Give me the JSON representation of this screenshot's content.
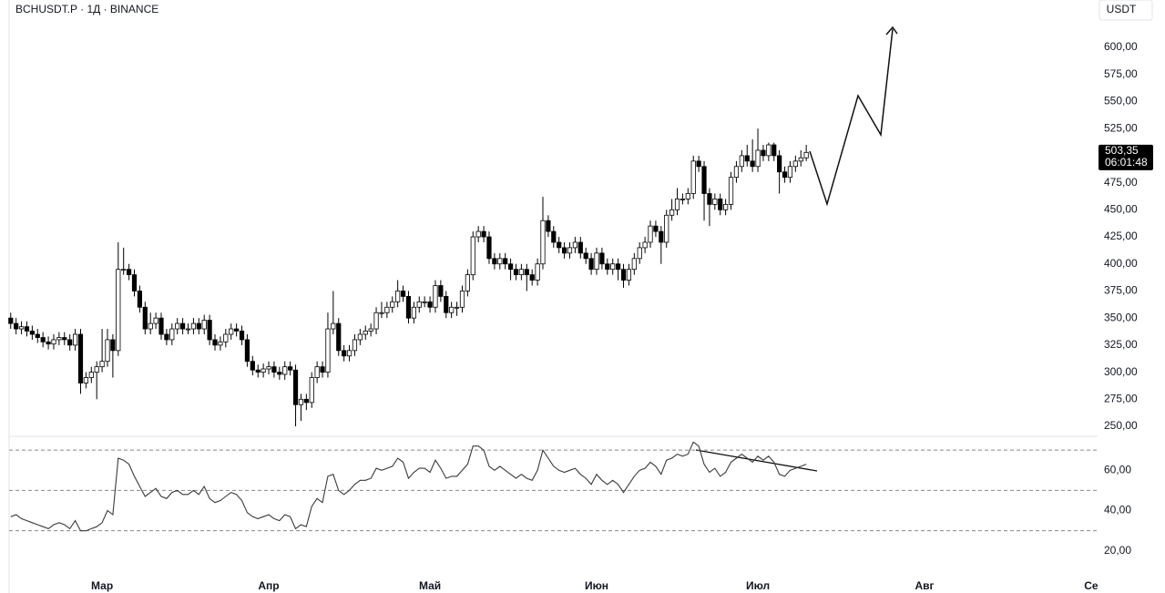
{
  "chart_data": [
    {
      "type": "candlestick",
      "title": "BCHUSDT.P · 1Д · BINANCE",
      "currency": "USDT",
      "up_color": "#ffffff",
      "down_color": "#000000",
      "edge_color": "#000000",
      "xlim": [
        -0.3,
        202.2
      ],
      "ylim": [
        241.6,
        643.8
      ],
      "yticks": [
        {
          "value": 250,
          "label": "250,00"
        },
        {
          "value": 275,
          "label": "275,00"
        },
        {
          "value": 300,
          "label": "300,00"
        },
        {
          "value": 325,
          "label": "325,00"
        },
        {
          "value": 350,
          "label": "350,00"
        },
        {
          "value": 375,
          "label": "375,00"
        },
        {
          "value": 400,
          "label": "400,00"
        },
        {
          "value": 425,
          "label": "425,00"
        },
        {
          "value": 450,
          "label": "450,00"
        },
        {
          "value": 475,
          "label": "475,00"
        },
        {
          "value": 500,
          "label": "500,00"
        },
        {
          "value": 525,
          "label": "525,00"
        },
        {
          "value": 550,
          "label": "550,00"
        },
        {
          "value": 575,
          "label": "575,00"
        },
        {
          "value": 600,
          "label": "600,00"
        }
      ],
      "last_price": {
        "value": 503.35,
        "label": "503,35"
      },
      "countdown": "06:01:48",
      "open": [
        350,
        345,
        340,
        342,
        338,
        335,
        332,
        328,
        326,
        330,
        332,
        330,
        325,
        335,
        290,
        295,
        300,
        305,
        310,
        330,
        320,
        395,
        395,
        390,
        375,
        360,
        340,
        345,
        350,
        335,
        330,
        340,
        345,
        340,
        340,
        345,
        340,
        348,
        330,
        325,
        328,
        335,
        340,
        338,
        330,
        310,
        302,
        300,
        303,
        305,
        300,
        298,
        305,
        302,
        270,
        275,
        272,
        295,
        305,
        300,
        340,
        345,
        320,
        315,
        320,
        330,
        335,
        338,
        340,
        355,
        355,
        360,
        365,
        375,
        370,
        350,
        360,
        365,
        365,
        360,
        380,
        370,
        355,
        360,
        360,
        375,
        390,
        425,
        430,
        425,
        405,
        400,
        405,
        400,
        395,
        390,
        395,
        390,
        385,
        400,
        440,
        430,
        420,
        415,
        410,
        415,
        420,
        410,
        405,
        395,
        410,
        400,
        395,
        400,
        395,
        385,
        395,
        405,
        415,
        420,
        435,
        430,
        420,
        445,
        450,
        460,
        460,
        465,
        495,
        490,
        465,
        455,
        460,
        450,
        455,
        480,
        490,
        500,
        495,
        490,
        505,
        500,
        510,
        500,
        485,
        480,
        490,
        495,
        498
      ],
      "high": [
        355,
        350,
        347,
        347,
        343,
        340,
        337,
        333,
        335,
        337,
        337,
        335,
        340,
        340,
        300,
        305,
        310,
        340,
        340,
        335,
        420,
        415,
        400,
        395,
        380,
        365,
        355,
        355,
        355,
        340,
        345,
        350,
        350,
        345,
        350,
        350,
        353,
        353,
        335,
        333,
        340,
        345,
        345,
        343,
        335,
        315,
        307,
        308,
        310,
        310,
        305,
        310,
        310,
        307,
        280,
        280,
        300,
        310,
        310,
        355,
        375,
        350,
        325,
        325,
        335,
        340,
        343,
        345,
        360,
        365,
        365,
        370,
        385,
        380,
        375,
        365,
        370,
        370,
        370,
        385,
        385,
        375,
        365,
        365,
        380,
        395,
        430,
        435,
        435,
        430,
        410,
        410,
        410,
        405,
        400,
        400,
        400,
        395,
        405,
        462,
        445,
        435,
        425,
        420,
        420,
        425,
        425,
        415,
        410,
        415,
        415,
        405,
        405,
        405,
        400,
        400,
        410,
        420,
        425,
        440,
        440,
        435,
        450,
        460,
        470,
        465,
        470,
        500,
        500,
        495,
        470,
        465,
        465,
        460,
        485,
        495,
        505,
        510,
        515,
        525,
        510,
        512,
        512,
        505,
        490,
        495,
        500,
        505,
        510
      ],
      "low": [
        340,
        335,
        335,
        333,
        330,
        327,
        323,
        321,
        321,
        325,
        325,
        320,
        320,
        280,
        285,
        290,
        275,
        300,
        305,
        295,
        315,
        390,
        385,
        370,
        355,
        335,
        335,
        340,
        330,
        325,
        325,
        335,
        335,
        335,
        335,
        335,
        335,
        325,
        320,
        320,
        323,
        330,
        333,
        325,
        305,
        297,
        295,
        295,
        298,
        295,
        293,
        293,
        297,
        250,
        255,
        265,
        267,
        290,
        295,
        295,
        335,
        315,
        310,
        310,
        315,
        325,
        330,
        333,
        335,
        350,
        350,
        355,
        360,
        365,
        345,
        345,
        355,
        360,
        355,
        355,
        365,
        350,
        350,
        352,
        355,
        370,
        385,
        420,
        420,
        400,
        395,
        395,
        395,
        385,
        385,
        385,
        375,
        380,
        380,
        395,
        425,
        415,
        410,
        405,
        405,
        410,
        405,
        400,
        390,
        390,
        395,
        390,
        390,
        385,
        378,
        380,
        390,
        400,
        410,
        415,
        425,
        400,
        415,
        440,
        445,
        455,
        455,
        460,
        485,
        440,
        435,
        450,
        445,
        445,
        450,
        475,
        485,
        490,
        485,
        485,
        495,
        495,
        495,
        465,
        475,
        475,
        485,
        490,
        495
      ],
      "close": [
        345,
        340,
        342,
        338,
        335,
        332,
        328,
        326,
        330,
        332,
        330,
        325,
        335,
        290,
        295,
        300,
        305,
        310,
        330,
        320,
        395,
        395,
        390,
        375,
        360,
        340,
        345,
        350,
        335,
        330,
        340,
        345,
        340,
        340,
        345,
        340,
        348,
        330,
        325,
        328,
        335,
        340,
        338,
        330,
        310,
        302,
        300,
        303,
        305,
        300,
        298,
        305,
        302,
        270,
        275,
        272,
        295,
        305,
        300,
        340,
        345,
        320,
        315,
        320,
        330,
        335,
        338,
        340,
        355,
        355,
        360,
        365,
        375,
        370,
        350,
        360,
        365,
        365,
        360,
        380,
        370,
        355,
        360,
        360,
        375,
        390,
        425,
        430,
        425,
        405,
        400,
        405,
        400,
        395,
        390,
        395,
        390,
        385,
        400,
        440,
        430,
        420,
        415,
        410,
        415,
        420,
        410,
        405,
        395,
        410,
        400,
        395,
        400,
        395,
        385,
        395,
        405,
        415,
        420,
        435,
        430,
        420,
        445,
        450,
        460,
        460,
        465,
        495,
        490,
        465,
        455,
        460,
        450,
        455,
        480,
        490,
        500,
        495,
        490,
        505,
        500,
        510,
        500,
        485,
        480,
        490,
        495,
        498,
        503
      ]
    },
    {
      "type": "line",
      "color": "#3a3a3a",
      "level_color": "#888888",
      "xlim": [
        -0.3,
        202.2
      ],
      "ylim": [
        8.6,
        76.4
      ],
      "yticks": [
        {
          "value": 20,
          "label": "20,00"
        },
        {
          "value": 40,
          "label": "40,00"
        },
        {
          "value": 60,
          "label": "60,00"
        }
      ],
      "levels": [
        70,
        50,
        30
      ],
      "xticks": [
        {
          "value": 17,
          "label": "Мар"
        },
        {
          "value": 48,
          "label": "Апр"
        },
        {
          "value": 78,
          "label": "Май"
        },
        {
          "value": 109,
          "label": "Июн"
        },
        {
          "value": 139,
          "label": "Июл"
        },
        {
          "value": 170,
          "label": "Авг"
        },
        {
          "value": 201,
          "label": "Се"
        }
      ],
      "values": [
        37,
        38,
        36,
        35,
        34,
        33,
        32,
        31,
        33,
        34,
        33,
        31,
        35,
        30,
        30,
        31,
        32,
        34,
        40,
        38,
        66,
        65,
        63,
        57,
        52,
        47,
        49,
        51,
        47,
        46,
        49,
        50,
        48,
        48,
        50,
        48,
        52,
        46,
        44,
        45,
        47,
        49,
        48,
        45,
        39,
        37,
        36,
        37,
        38,
        36,
        35,
        38,
        37,
        31,
        33,
        32,
        42,
        46,
        44,
        57,
        58,
        50,
        48,
        50,
        53,
        55,
        55,
        56,
        61,
        60,
        61,
        62,
        66,
        64,
        56,
        59,
        61,
        61,
        59,
        65,
        61,
        56,
        57,
        57,
        60,
        63,
        72,
        72,
        70,
        62,
        60,
        62,
        60,
        58,
        56,
        58,
        56,
        55,
        60,
        70,
        66,
        62,
        60,
        59,
        60,
        61,
        58,
        56,
        53,
        58,
        55,
        53,
        55,
        53,
        49,
        53,
        57,
        60,
        61,
        64,
        62,
        58,
        65,
        66,
        68,
        67,
        68,
        74,
        72,
        63,
        59,
        61,
        57,
        59,
        64,
        66,
        68,
        66,
        64,
        67,
        65,
        67,
        64,
        58,
        57,
        60,
        61,
        62,
        63
      ]
    }
  ]
}
